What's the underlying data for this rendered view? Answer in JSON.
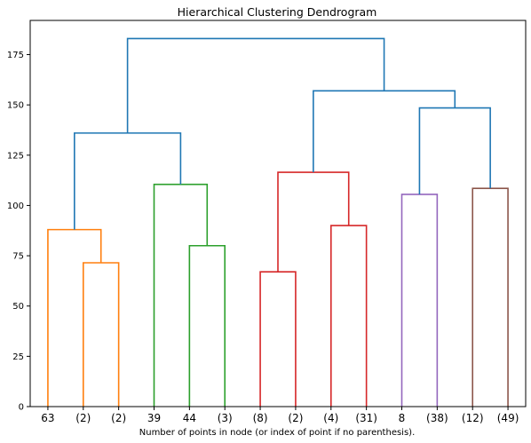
{
  "chart_data": {
    "type": "dendrogram",
    "title": "Hierarchical Clustering Dendrogram",
    "xlabel": "Number of points in node (or index of point if no parenthesis).",
    "ylabel": "",
    "ylim": [
      0,
      192
    ],
    "yticks": [
      0,
      25,
      50,
      75,
      100,
      125,
      150,
      175
    ],
    "grid": false,
    "leaves": [
      "63",
      "(2)",
      "(2)",
      "39",
      "44",
      "(3)",
      "(8)",
      "(2)",
      "(4)",
      "(31)",
      "8",
      "(38)",
      "(12)",
      "(49)"
    ],
    "colors": {
      "orange": "#ff7f0e",
      "green": "#2ca02c",
      "red": "#d62728",
      "purple": "#9467bd",
      "brown": "#8c564b",
      "blue": "#1f77b4"
    },
    "links": [
      {
        "left": "L1",
        "right": "L2",
        "height": 71.5,
        "color": "orange"
      },
      {
        "left": "L0",
        "right": "N0",
        "height": 88.0,
        "color": "orange"
      },
      {
        "left": "L4",
        "right": "L5",
        "height": 80.0,
        "color": "green"
      },
      {
        "left": "L3",
        "right": "N2",
        "height": 110.5,
        "color": "green"
      },
      {
        "left": "N1",
        "right": "N3",
        "height": 136.0,
        "color": "blue"
      },
      {
        "left": "L6",
        "right": "L7",
        "height": 67.0,
        "color": "red"
      },
      {
        "left": "L8",
        "right": "L9",
        "height": 90.0,
        "color": "red"
      },
      {
        "left": "N5",
        "right": "N6",
        "height": 116.5,
        "color": "red"
      },
      {
        "left": "L10",
        "right": "L11",
        "height": 105.5,
        "color": "purple"
      },
      {
        "left": "L12",
        "right": "L13",
        "height": 108.5,
        "color": "brown"
      },
      {
        "left": "N8",
        "right": "N9",
        "height": 148.5,
        "color": "blue"
      },
      {
        "left": "N7",
        "right": "N10",
        "height": 157.0,
        "color": "blue"
      },
      {
        "left": "N4",
        "right": "N11",
        "height": 183.0,
        "color": "blue"
      }
    ]
  }
}
